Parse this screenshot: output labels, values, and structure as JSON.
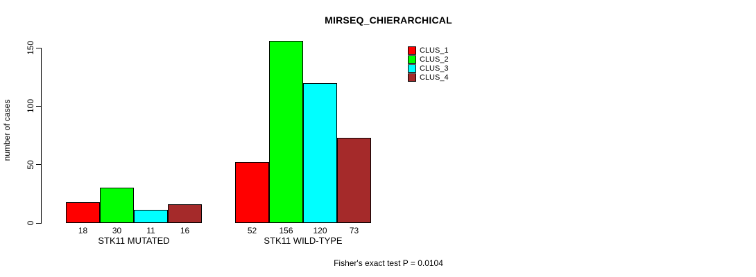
{
  "title": "MIRSEQ_CHIERARCHICAL",
  "footer": "Fisher's exact test P = 0.0104",
  "y_axis": {
    "label": "number of cases",
    "ticks": [
      0,
      50,
      100,
      150
    ]
  },
  "legend": {
    "entries": [
      {
        "label": "CLUS_1",
        "color": "#FF0000"
      },
      {
        "label": "CLUS_2",
        "color": "#00FF00"
      },
      {
        "label": "CLUS_3",
        "color": "#00FFFF"
      },
      {
        "label": "CLUS_4",
        "color": "#A52A2A"
      }
    ]
  },
  "chart_data": {
    "type": "bar",
    "title": "MIRSEQ_CHIERARCHICAL",
    "xlabel": "",
    "ylabel": "number of cases",
    "ylim": [
      0,
      150
    ],
    "grid": false,
    "legend_position": "top-right",
    "categories": [
      "STK11 MUTATED",
      "STK11 WILD-TYPE"
    ],
    "series": [
      {
        "name": "CLUS_1",
        "color": "#FF0000",
        "values": [
          18,
          52
        ]
      },
      {
        "name": "CLUS_2",
        "color": "#00FF00",
        "values": [
          30,
          156
        ]
      },
      {
        "name": "CLUS_3",
        "color": "#00FFFF",
        "values": [
          11,
          120
        ]
      },
      {
        "name": "CLUS_4",
        "color": "#A52A2A",
        "values": [
          16,
          73
        ]
      }
    ],
    "bar_value_labels": [
      [
        18,
        30,
        11,
        16
      ],
      [
        52,
        156,
        120,
        73
      ]
    ],
    "annotation": "Fisher's exact test P = 0.0104"
  }
}
